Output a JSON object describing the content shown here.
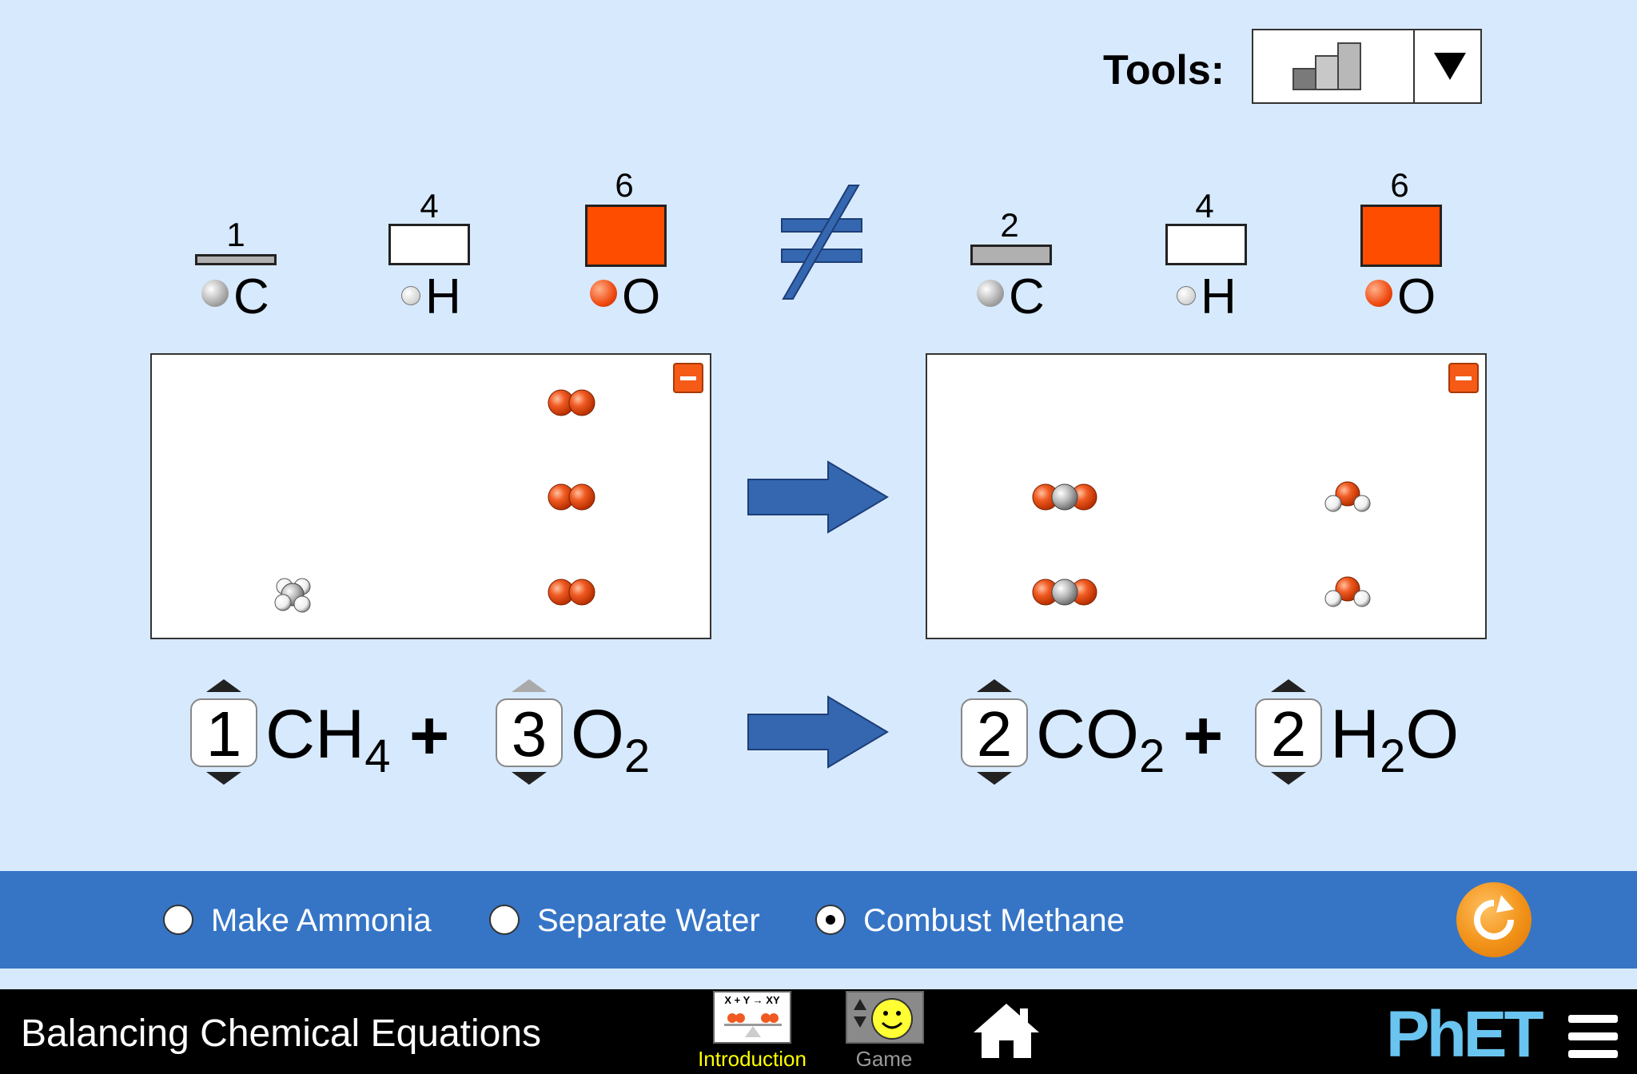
{
  "toolbar": {
    "tools_label": "Tools:",
    "tools_selected_icon": "bar-chart-icon"
  },
  "chart_data": {
    "type": "bar",
    "groups": [
      {
        "side": "reactants",
        "categories": [
          "C",
          "H",
          "O"
        ],
        "values": [
          1,
          4,
          6
        ]
      },
      {
        "side": "products",
        "categories": [
          "C",
          "H",
          "O"
        ],
        "values": [
          2,
          4,
          6
        ]
      }
    ]
  },
  "bars": {
    "reactants": [
      {
        "count": "1",
        "element": "C",
        "color": "#b0b0b0"
      },
      {
        "count": "4",
        "element": "H",
        "color": "#ffffff"
      },
      {
        "count": "6",
        "element": "O",
        "color": "#ff4d00"
      }
    ],
    "products": [
      {
        "count": "2",
        "element": "C",
        "color": "#b0b0b0"
      },
      {
        "count": "4",
        "element": "H",
        "color": "#ffffff"
      },
      {
        "count": "6",
        "element": "O",
        "color": "#ff4d00"
      }
    ],
    "comparison_symbol": "≠"
  },
  "equation": {
    "reactant1": {
      "coefficient": "1",
      "formula": "CH",
      "sub": "4"
    },
    "reactant2": {
      "coefficient": "3",
      "formula": "O",
      "sub": "2"
    },
    "product1": {
      "coefficient": "2",
      "formula": "CO",
      "sub": "2"
    },
    "product2": {
      "coefficient": "2",
      "formula_pre": "H",
      "sub": "2",
      "formula_post": "O"
    },
    "plus": "+"
  },
  "reactions": {
    "options": [
      "Make Ammonia",
      "Separate Water",
      "Combust Methane"
    ],
    "selected": "Combust Methane"
  },
  "navbar": {
    "sim_title": "Balancing Chemical Equations",
    "screens": [
      {
        "label": "Introduction",
        "active": true,
        "icon_text": "X + Y → XY"
      },
      {
        "label": "Game",
        "active": false
      }
    ],
    "brand": "PhET"
  },
  "colors": {
    "background": "#d7e9fd",
    "control_bar": "#3675c6",
    "oxygen": "#f05a22",
    "carbon": "#a8a8a8",
    "arrow": "#3467b0",
    "active_screen_label": "#ffff00"
  }
}
